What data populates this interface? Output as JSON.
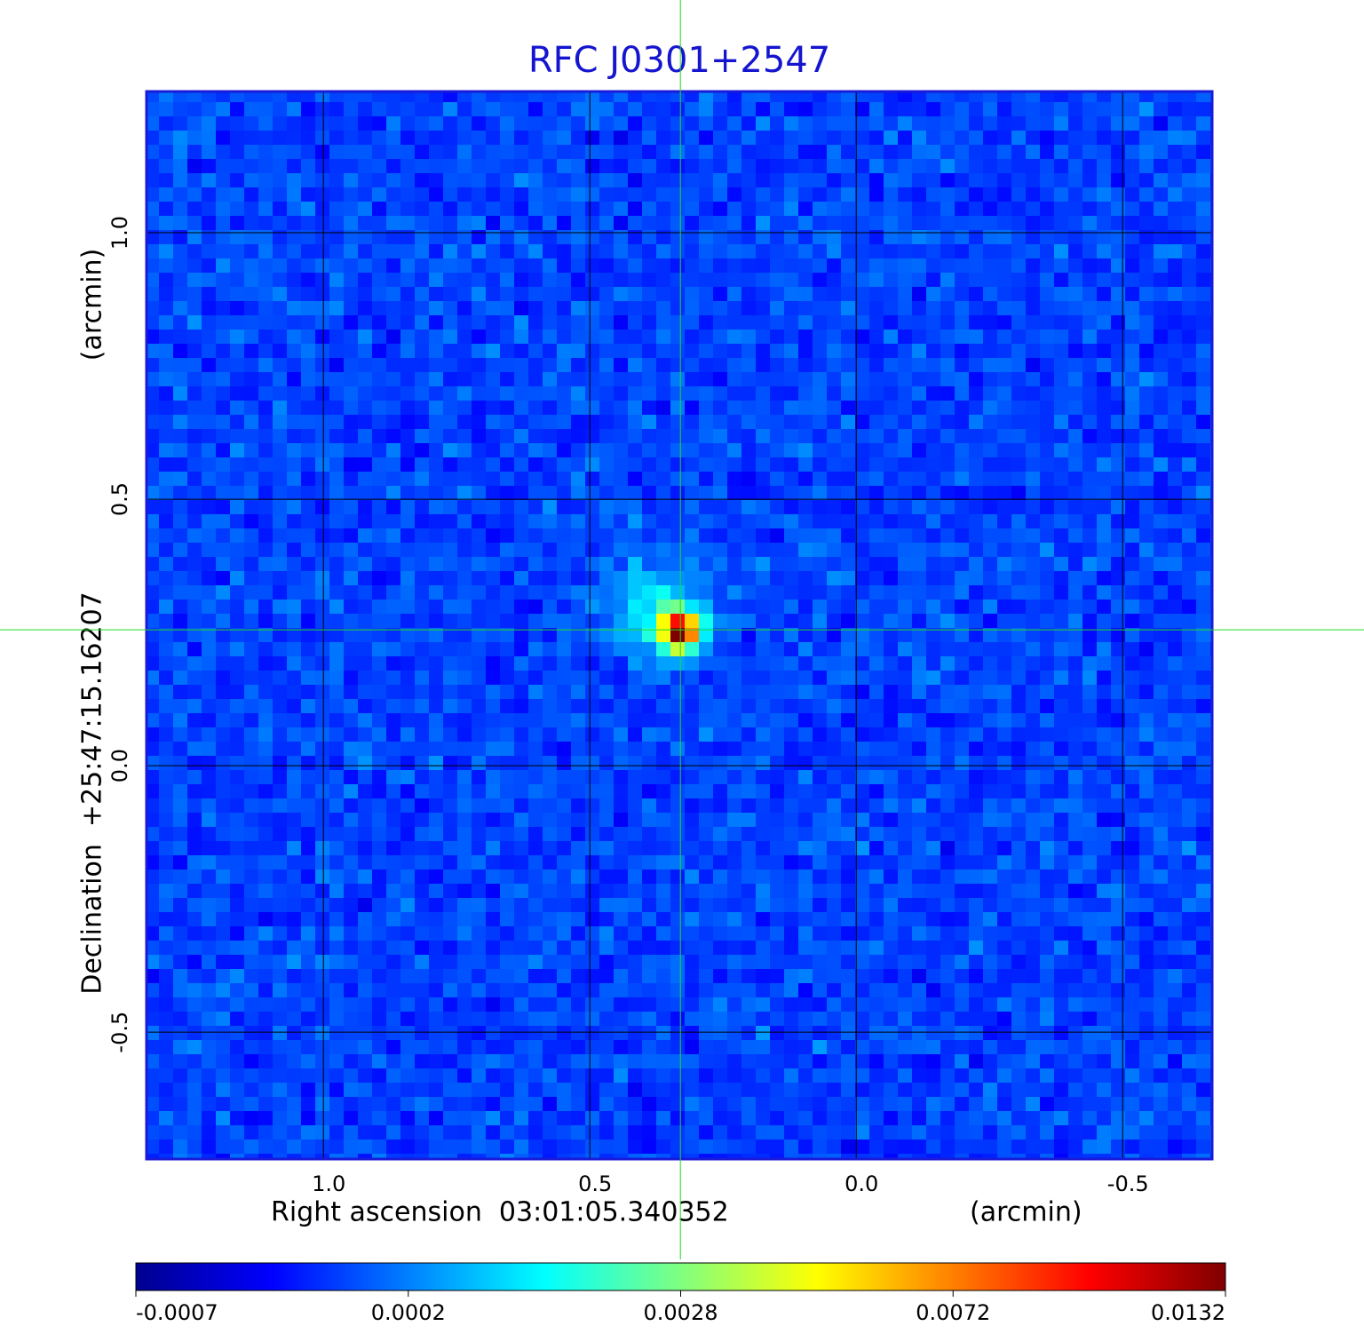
{
  "chart_data": {
    "type": "image",
    "title": "RFC J0301+2547",
    "x_label": "Right ascension  03:01:05.340352",
    "x_unit": "(arcmin)",
    "y_label": "Declination  +25:47:15.16207",
    "y_unit": "(arcmin)",
    "xlim": [
      1.332,
      -0.668
    ],
    "ylim": [
      -0.738,
      1.265
    ],
    "xticks": [
      {
        "value": 1,
        "label": "1.0"
      },
      0.5,
      {
        "value": 0,
        "label": "0.0"
      },
      -0.5
    ],
    "yticks": [
      {
        "value": 1,
        "label": "1.0"
      },
      0.5,
      {
        "value": 0,
        "label": "0.0"
      },
      -0.5
    ],
    "grid": true,
    "crosshair": [
      0.33,
      0.255
    ],
    "colormap": "jet",
    "colorbar_ticks": [
      -0.0007,
      0.0002,
      0.0028,
      0.0072,
      0.0132
    ]
  }
}
